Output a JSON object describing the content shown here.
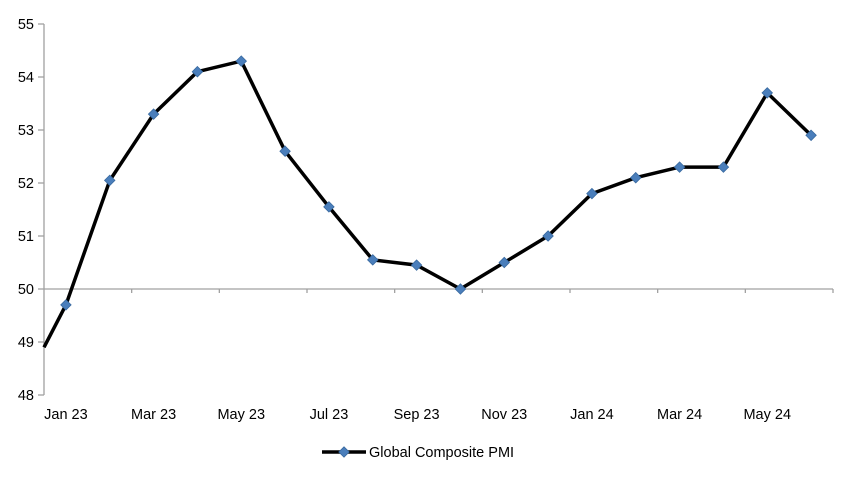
{
  "chart_data": {
    "type": "line",
    "title": "",
    "series": [
      {
        "name": "Global Composite PMI",
        "categories": [
          "Jan 23",
          "Feb 23",
          "Mar 23",
          "Apr 23",
          "May 23",
          "Jun 23",
          "Jul 23",
          "Aug 23",
          "Sep 23",
          "Oct 23",
          "Nov 23",
          "Dec 23",
          "Jan 24",
          "Feb 24",
          "Mar 24",
          "Apr 24",
          "May 24",
          "Jun 24"
        ],
        "values": [
          49.7,
          52.05,
          53.3,
          54.1,
          54.3,
          52.6,
          51.55,
          50.55,
          50.45,
          50.0,
          50.5,
          51.0,
          51.8,
          52.1,
          52.3,
          52.3,
          53.7,
          52.9
        ],
        "leading_edge_value": 48.9,
        "marker_shape": "diamond"
      }
    ],
    "x_tick_labels_shown": [
      "Jan 23",
      "Mar 23",
      "May 23",
      "Jul 23",
      "Sep 23",
      "Nov 23",
      "Jan 24",
      "Mar 24",
      "May 24"
    ],
    "x_tick_label_interval": 2,
    "y_ticks": [
      48,
      49,
      50,
      51,
      52,
      53,
      54,
      55
    ],
    "ylim": [
      48,
      55
    ],
    "axis_cross_y": 50,
    "grid": "off",
    "legend": {
      "label": "Global Composite PMI",
      "position": "bottom-center"
    },
    "colors": {
      "line": "#000000",
      "marker_fill": "#4A7EBB",
      "marker_stroke": "#38699F",
      "axis": "#A0A0A0",
      "text": "#000000"
    }
  }
}
